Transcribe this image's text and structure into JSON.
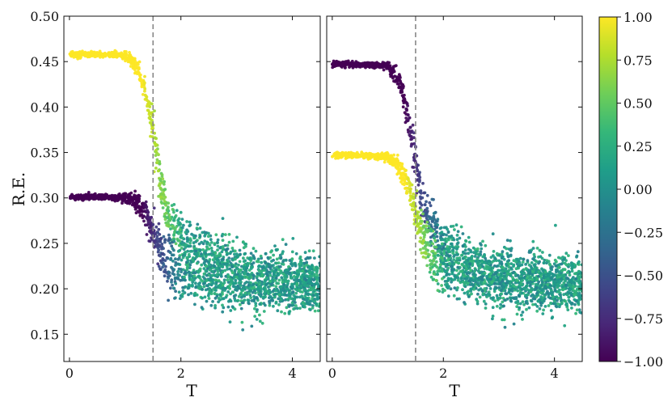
{
  "chart_data": {
    "type": "scatter",
    "ylabel": "R.E.",
    "ylim": [
      0.12,
      0.5
    ],
    "yticks": [
      0.15,
      0.2,
      0.25,
      0.3,
      0.35,
      0.4,
      0.45,
      0.5
    ],
    "ytick_labels": [
      "0.15",
      "0.20",
      "0.25",
      "0.30",
      "0.35",
      "0.40",
      "0.45",
      "0.50"
    ],
    "xticks": [
      0,
      2,
      4
    ],
    "xtick_labels": [
      "0",
      "2",
      "4"
    ],
    "xlim": [
      -0.1,
      4.5
    ],
    "vline_x": 1.5,
    "vline_style": "dashed gray",
    "colormap": "viridis",
    "colorbar": {
      "range": [
        -1.0,
        1.0
      ],
      "ticks": [
        1.0,
        0.75,
        0.5,
        0.25,
        0.0,
        -0.25,
        -0.5,
        -0.75,
        -1.0
      ],
      "tick_labels": [
        "1.00",
        "0.75",
        "0.50",
        "0.25",
        "0.00",
        "−0.25",
        "−0.50",
        "−0.75",
        "−1.00"
      ],
      "colors": [
        "#440154",
        "#482878",
        "#3e4989",
        "#31688e",
        "#26828e",
        "#1f9e89",
        "#35b779",
        "#6ece58",
        "#b5de2b",
        "#fde725"
      ]
    },
    "panels": [
      {
        "xlabel": "T",
        "series": [
          {
            "color_value": 1.0,
            "T": [
              0.0,
              0.5,
              1.0,
              1.2,
              1.35,
              1.5,
              1.6,
              1.75,
              2.0,
              2.5,
              3.0,
              3.5,
              4.0,
              4.5
            ],
            "RE": [
              0.458,
              0.458,
              0.457,
              0.445,
              0.42,
              0.375,
              0.33,
              0.285,
              0.255,
              0.235,
              0.225,
              0.22,
              0.215,
              0.213
            ]
          },
          {
            "color_value": -1.0,
            "T": [
              0.0,
              0.5,
              1.0,
              1.2,
              1.35,
              1.5,
              1.6,
              1.75,
              2.0,
              2.5,
              3.0,
              3.5,
              4.0,
              4.5
            ],
            "RE": [
              0.301,
              0.301,
              0.3,
              0.296,
              0.285,
              0.265,
              0.245,
              0.23,
              0.215,
              0.205,
              0.2,
              0.198,
              0.197,
              0.197
            ]
          }
        ]
      },
      {
        "xlabel": "T",
        "series": [
          {
            "color_value": -1.0,
            "T": [
              0.0,
              0.5,
              1.0,
              1.2,
              1.35,
              1.5,
              1.6,
              1.75,
              2.0,
              2.5,
              3.0,
              3.5,
              4.0,
              4.5
            ],
            "RE": [
              0.447,
              0.447,
              0.446,
              0.43,
              0.395,
              0.34,
              0.3,
              0.27,
              0.245,
              0.228,
              0.22,
              0.215,
              0.212,
              0.21
            ]
          },
          {
            "color_value": 1.0,
            "T": [
              0.0,
              0.5,
              1.0,
              1.2,
              1.35,
              1.5,
              1.6,
              1.75,
              2.0,
              2.5,
              3.0,
              3.5,
              4.0,
              4.5
            ],
            "RE": [
              0.347,
              0.347,
              0.345,
              0.335,
              0.315,
              0.285,
              0.26,
              0.24,
              0.222,
              0.21,
              0.203,
              0.2,
              0.199,
              0.198
            ]
          }
        ]
      }
    ]
  }
}
